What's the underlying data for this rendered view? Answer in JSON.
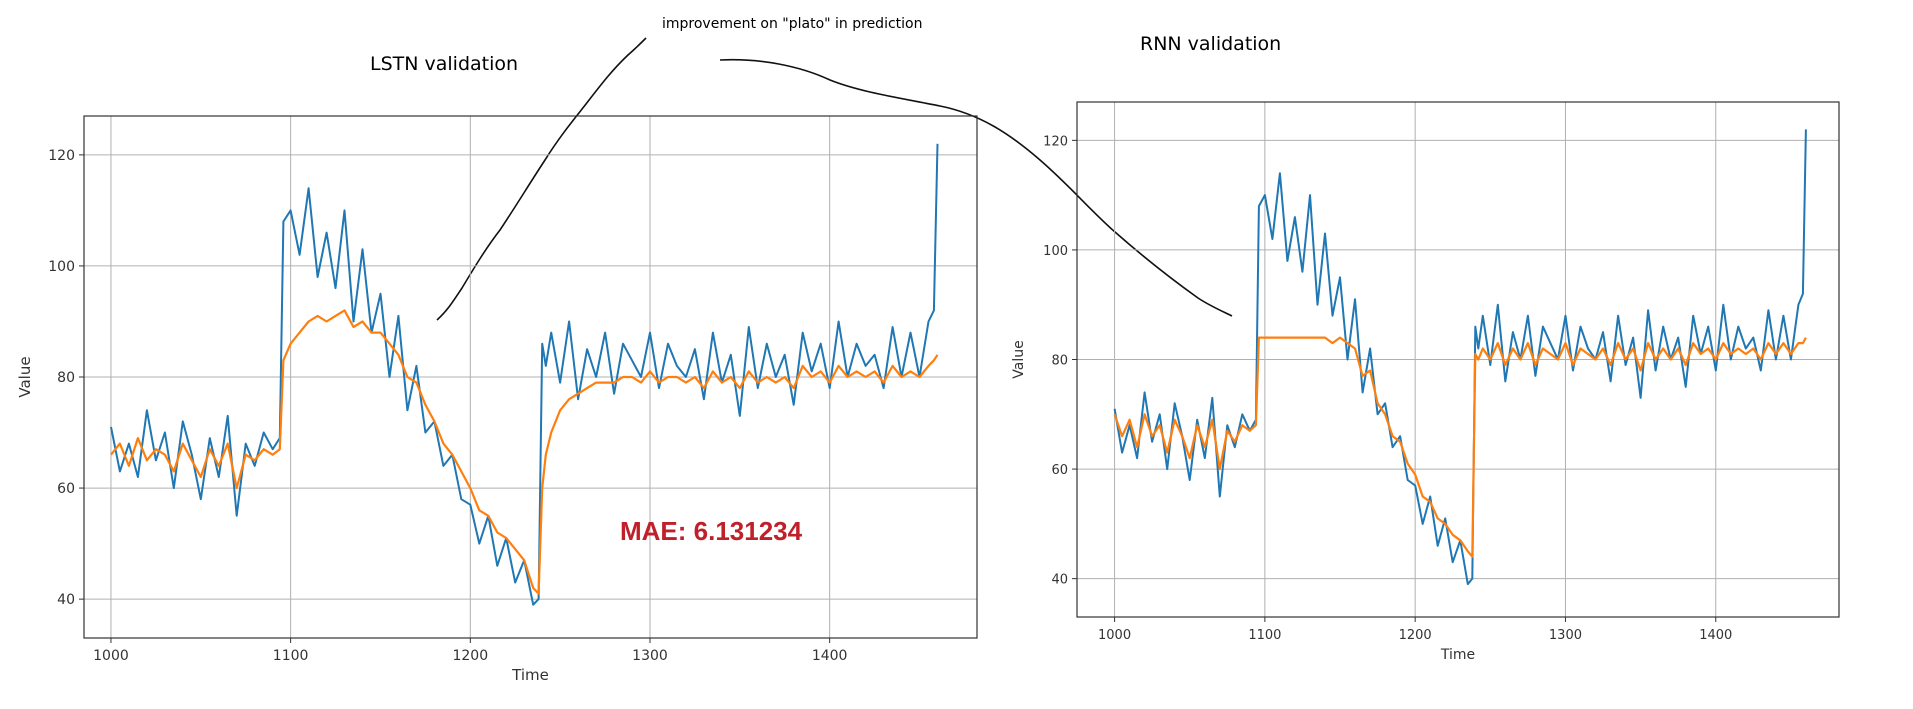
{
  "annotations": {
    "left_title": "LSTN validation",
    "right_title": "RNN validation",
    "note": "improvement on \"plato\" in prediction",
    "mae": "MAE: 6.131234"
  },
  "colors": {
    "actual": "#1f77b4",
    "predicted": "#ff7f0e",
    "mae": "#c0202a",
    "grid": "#b0b0b0",
    "frame": "#333333"
  },
  "chart_data": [
    {
      "type": "line",
      "xlabel": "Time",
      "ylabel": "Value",
      "xlim": [
        985,
        1482
      ],
      "ylim": [
        33,
        127
      ],
      "xticks": [
        1000,
        1100,
        1200,
        1300,
        1400
      ],
      "yticks": [
        40,
        60,
        80,
        100,
        120
      ],
      "grid": true,
      "series": [
        {
          "x": [
            1000,
            1005,
            1010,
            1015,
            1020,
            1025,
            1030,
            1035,
            1040,
            1045,
            1050,
            1055,
            1060,
            1065,
            1070,
            1075,
            1080,
            1085,
            1090,
            1094,
            1096,
            1100,
            1105,
            1110,
            1115,
            1120,
            1125,
            1130,
            1135,
            1140,
            1145,
            1150,
            1155,
            1160,
            1165,
            1170,
            1175,
            1180,
            1185,
            1190,
            1195,
            1200,
            1205,
            1210,
            1215,
            1220,
            1225,
            1230,
            1235,
            1238,
            1240,
            1242,
            1245,
            1250,
            1255,
            1260,
            1265,
            1270,
            1275,
            1280,
            1285,
            1290,
            1295,
            1300,
            1305,
            1310,
            1315,
            1320,
            1325,
            1330,
            1335,
            1340,
            1345,
            1350,
            1355,
            1360,
            1365,
            1370,
            1375,
            1380,
            1385,
            1390,
            1395,
            1400,
            1405,
            1410,
            1415,
            1420,
            1425,
            1430,
            1435,
            1440,
            1445,
            1450,
            1455,
            1458,
            1460
          ],
          "values": [
            71,
            63,
            68,
            62,
            74,
            65,
            70,
            60,
            72,
            66,
            58,
            69,
            62,
            73,
            55,
            68,
            64,
            70,
            67,
            69,
            108,
            110,
            102,
            114,
            98,
            106,
            96,
            110,
            90,
            103,
            88,
            95,
            80,
            91,
            74,
            82,
            70,
            72,
            64,
            66,
            58,
            57,
            50,
            55,
            46,
            51,
            43,
            47,
            39,
            40,
            86,
            82,
            88,
            79,
            90,
            76,
            85,
            80,
            88,
            77,
            86,
            83,
            80,
            88,
            78,
            86,
            82,
            80,
            85,
            76,
            88,
            79,
            84,
            73,
            89,
            78,
            86,
            80,
            84,
            75,
            88,
            81,
            86,
            78,
            90,
            80,
            86,
            82,
            84,
            78,
            89,
            80,
            88,
            80,
            90,
            92,
            122
          ]
        },
        {
          "x": [
            1000,
            1005,
            1010,
            1015,
            1020,
            1025,
            1030,
            1035,
            1040,
            1045,
            1050,
            1055,
            1060,
            1065,
            1070,
            1075,
            1080,
            1085,
            1090,
            1094,
            1096,
            1100,
            1105,
            1110,
            1115,
            1120,
            1125,
            1130,
            1135,
            1140,
            1145,
            1150,
            1155,
            1160,
            1165,
            1170,
            1175,
            1180,
            1185,
            1190,
            1195,
            1200,
            1205,
            1210,
            1215,
            1220,
            1225,
            1230,
            1235,
            1238,
            1240,
            1242,
            1245,
            1250,
            1255,
            1260,
            1265,
            1270,
            1275,
            1280,
            1285,
            1290,
            1295,
            1300,
            1305,
            1310,
            1315,
            1320,
            1325,
            1330,
            1335,
            1340,
            1345,
            1350,
            1355,
            1360,
            1365,
            1370,
            1375,
            1380,
            1385,
            1390,
            1395,
            1400,
            1405,
            1410,
            1415,
            1420,
            1425,
            1430,
            1435,
            1440,
            1445,
            1450,
            1455,
            1458,
            1460
          ],
          "values": [
            66,
            68,
            64,
            69,
            65,
            67,
            66,
            63,
            68,
            65,
            62,
            67,
            64,
            68,
            60,
            66,
            65,
            67,
            66,
            67,
            83,
            86,
            88,
            90,
            91,
            90,
            91,
            92,
            89,
            90,
            88,
            88,
            86,
            84,
            80,
            79,
            75,
            72,
            68,
            66,
            63,
            60,
            56,
            55,
            52,
            51,
            49,
            47,
            42,
            41,
            60,
            66,
            70,
            74,
            76,
            77,
            78,
            79,
            79,
            79,
            80,
            80,
            79,
            81,
            79,
            80,
            80,
            79,
            80,
            78,
            81,
            79,
            80,
            78,
            81,
            79,
            80,
            79,
            80,
            78,
            82,
            80,
            81,
            79,
            82,
            80,
            81,
            80,
            81,
            79,
            82,
            80,
            81,
            80,
            82,
            83,
            84
          ]
        }
      ]
    },
    {
      "type": "line",
      "xlabel": "Time",
      "ylabel": "Value",
      "xlim": [
        975,
        1482
      ],
      "ylim": [
        33,
        127
      ],
      "xticks": [
        1000,
        1100,
        1200,
        1300,
        1400
      ],
      "yticks": [
        40,
        60,
        80,
        100,
        120
      ],
      "grid": true,
      "series": [
        {
          "x": [
            1000,
            1005,
            1010,
            1015,
            1020,
            1025,
            1030,
            1035,
            1040,
            1045,
            1050,
            1055,
            1060,
            1065,
            1070,
            1075,
            1080,
            1085,
            1090,
            1094,
            1096,
            1100,
            1105,
            1110,
            1115,
            1120,
            1125,
            1130,
            1135,
            1140,
            1145,
            1150,
            1155,
            1160,
            1165,
            1170,
            1175,
            1180,
            1185,
            1190,
            1195,
            1200,
            1205,
            1210,
            1215,
            1220,
            1225,
            1230,
            1235,
            1238,
            1240,
            1242,
            1245,
            1250,
            1255,
            1260,
            1265,
            1270,
            1275,
            1280,
            1285,
            1290,
            1295,
            1300,
            1305,
            1310,
            1315,
            1320,
            1325,
            1330,
            1335,
            1340,
            1345,
            1350,
            1355,
            1360,
            1365,
            1370,
            1375,
            1380,
            1385,
            1390,
            1395,
            1400,
            1405,
            1410,
            1415,
            1420,
            1425,
            1430,
            1435,
            1440,
            1445,
            1450,
            1455,
            1458,
            1460
          ],
          "values": [
            71,
            63,
            68,
            62,
            74,
            65,
            70,
            60,
            72,
            66,
            58,
            69,
            62,
            73,
            55,
            68,
            64,
            70,
            67,
            69,
            108,
            110,
            102,
            114,
            98,
            106,
            96,
            110,
            90,
            103,
            88,
            95,
            80,
            91,
            74,
            82,
            70,
            72,
            64,
            66,
            58,
            57,
            50,
            55,
            46,
            51,
            43,
            47,
            39,
            40,
            86,
            82,
            88,
            79,
            90,
            76,
            85,
            80,
            88,
            77,
            86,
            83,
            80,
            88,
            78,
            86,
            82,
            80,
            85,
            76,
            88,
            79,
            84,
            73,
            89,
            78,
            86,
            80,
            84,
            75,
            88,
            81,
            86,
            78,
            90,
            80,
            86,
            82,
            84,
            78,
            89,
            80,
            88,
            80,
            90,
            92,
            122
          ]
        },
        {
          "x": [
            1000,
            1005,
            1010,
            1015,
            1020,
            1025,
            1030,
            1035,
            1040,
            1045,
            1050,
            1055,
            1060,
            1065,
            1070,
            1075,
            1080,
            1085,
            1090,
            1094,
            1096,
            1100,
            1105,
            1110,
            1115,
            1120,
            1125,
            1130,
            1135,
            1140,
            1145,
            1150,
            1155,
            1160,
            1165,
            1170,
            1175,
            1180,
            1185,
            1190,
            1195,
            1200,
            1205,
            1210,
            1215,
            1220,
            1225,
            1230,
            1235,
            1238,
            1240,
            1242,
            1245,
            1250,
            1255,
            1260,
            1265,
            1270,
            1275,
            1280,
            1285,
            1290,
            1295,
            1300,
            1305,
            1310,
            1315,
            1320,
            1325,
            1330,
            1335,
            1340,
            1345,
            1350,
            1355,
            1360,
            1365,
            1370,
            1375,
            1380,
            1385,
            1390,
            1395,
            1400,
            1405,
            1410,
            1415,
            1420,
            1425,
            1430,
            1435,
            1440,
            1445,
            1450,
            1455,
            1458,
            1460
          ],
          "values": [
            70,
            66,
            69,
            64,
            70,
            66,
            68,
            63,
            69,
            66,
            62,
            68,
            64,
            69,
            60,
            67,
            65,
            68,
            67,
            68,
            84,
            84,
            84,
            84,
            84,
            84,
            84,
            84,
            84,
            84,
            83,
            84,
            83,
            82,
            77,
            78,
            72,
            70,
            66,
            65,
            61,
            59,
            55,
            54,
            51,
            50,
            48,
            47,
            45,
            44,
            81,
            80,
            82,
            80,
            83,
            79,
            82,
            80,
            83,
            79,
            82,
            81,
            80,
            83,
            79,
            82,
            81,
            80,
            82,
            79,
            83,
            80,
            82,
            78,
            83,
            80,
            82,
            80,
            82,
            79,
            83,
            81,
            82,
            80,
            83,
            81,
            82,
            81,
            82,
            80,
            83,
            81,
            83,
            81,
            83,
            83,
            84
          ]
        }
      ]
    }
  ]
}
